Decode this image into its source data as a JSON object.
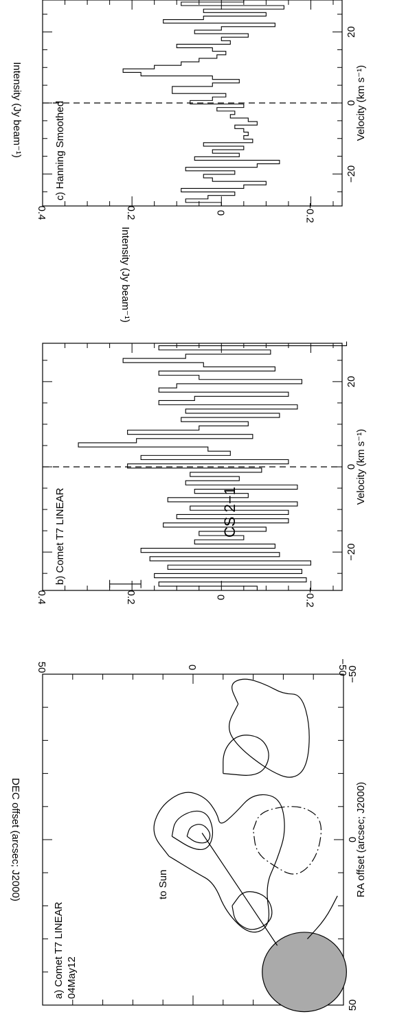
{
  "figure_title": "CS 2−1",
  "chart_data": [
    {
      "type": "contour",
      "panel_label": "a) Comet T7 LINEAR",
      "date_label": "04May12",
      "annotation": "to Sun",
      "xlabel": "RA offset (arcsec; J2000)",
      "ylabel": "DEC offset (arcsec; J2000)",
      "xlim": [
        50,
        -50
      ],
      "ylim": [
        -50,
        50
      ],
      "xticks": [
        50,
        0,
        -50
      ],
      "yticks": [
        -50,
        0,
        50
      ],
      "tick_labels_x": [
        "50",
        "0",
        "−50"
      ],
      "tick_labels_y": [
        "−50",
        "0",
        "50"
      ],
      "sun_arrow": [
        [
          32,
          -28
        ],
        [
          -2,
          -3
        ]
      ],
      "beam": {
        "x": 40,
        "y": -37,
        "rx": 12,
        "ry": 14
      },
      "contours": [
        {
          "style": "solid",
          "points": [
            [
              5,
              8
            ],
            [
              -2,
              14
            ],
            [
              -10,
              11
            ],
            [
              -15,
              3
            ],
            [
              -13,
              -4
            ],
            [
              -8,
              -8
            ],
            [
              -4,
              -9
            ],
            [
              -8,
              -14
            ],
            [
              -14,
              -20
            ],
            [
              -13,
              -29
            ],
            [
              -3,
              -31
            ],
            [
              6,
              -28
            ],
            [
              14,
              -24
            ],
            [
              26,
              -26
            ],
            [
              29,
              -19
            ],
            [
              22,
              -11
            ],
            [
              13,
              -7
            ],
            [
              10,
              -1
            ],
            [
              5,
              8
            ]
          ]
        },
        {
          "style": "solid",
          "points": [
            [
              -1,
              7
            ],
            [
              -6,
              6
            ],
            [
              -9,
              0
            ],
            [
              -8,
              -5
            ],
            [
              -2,
              -7
            ],
            [
              3,
              -5
            ],
            [
              3,
              0
            ],
            [
              -1,
              7
            ]
          ]
        },
        {
          "style": "solid",
          "points": [
            [
              -1,
              2
            ],
            [
              -4,
              1
            ],
            [
              -5,
              -3
            ],
            [
              -2,
              -6
            ],
            [
              1,
              -5
            ],
            [
              1,
              -1
            ],
            [
              -1,
              2
            ]
          ]
        },
        {
          "style": "solid",
          "points": [
            [
              20,
              -13
            ],
            [
              15,
              -17
            ],
            [
              17,
              -25
            ],
            [
              24,
              -27
            ],
            [
              28,
              -20
            ],
            [
              25,
              -14
            ],
            [
              20,
              -13
            ]
          ]
        },
        {
          "style": "solid",
          "points": [
            [
              -20,
              -10
            ],
            [
              -27,
              -10
            ],
            [
              -32,
              -15
            ],
            [
              -31,
              -23
            ],
            [
              -25,
              -26
            ],
            [
              -19,
              -22
            ],
            [
              -20,
              -10
            ]
          ]
        },
        {
          "style": "solid",
          "points": [
            [
              -41,
              -15
            ],
            [
              -47,
              -12
            ],
            [
              -49,
              -17
            ],
            [
              -47,
              -24
            ],
            [
              -44,
              -30
            ],
            [
              -44,
              -36
            ],
            [
              -34,
              -39
            ],
            [
              -22,
              -38
            ],
            [
              -18,
              -33
            ],
            [
              -21,
              -25
            ],
            [
              -28,
              -15
            ],
            [
              -34,
              -11
            ],
            [
              -41,
              -15
            ]
          ]
        },
        {
          "style": "dashdot",
          "points": [
            [
              -3,
              -20
            ],
            [
              -8,
              -22
            ],
            [
              -10,
              -29
            ],
            [
              -10,
              -37
            ],
            [
              -6,
              -43
            ],
            [
              3,
              -42
            ],
            [
              9,
              -38
            ],
            [
              11,
              -33
            ],
            [
              8,
              -27
            ],
            [
              4,
              -21
            ],
            [
              -3,
              -20
            ]
          ]
        },
        {
          "style": "solid",
          "points": [
            [
              30,
              -38
            ],
            [
              24,
              -44
            ],
            [
              17,
              -48
            ]
          ]
        }
      ]
    },
    {
      "type": "step",
      "panel_label": "b) Comet T7 LINEAR",
      "xlabel": "Velocity (km s⁻¹)",
      "ylabel": "Intensity (Jy beam⁻¹)",
      "xlim": [
        -29,
        29
      ],
      "ylim": [
        -0.27,
        0.4
      ],
      "xticks": [
        -20,
        0,
        20
      ],
      "yticks": [
        -0.2,
        0,
        0.2,
        0.4
      ],
      "tick_labels_x": [
        "−20",
        "0",
        "20"
      ],
      "tick_labels_y": [
        "−0.2",
        "0",
        "0.2",
        "0.4"
      ],
      "vline": 0,
      "error_bar": {
        "x": -27.5,
        "y_low": 0.18,
        "y_high": 0.25
      },
      "x_start": -29,
      "bin_width": 0.99,
      "values": [
        -0.08,
        0.14,
        -0.19,
        0.15,
        -0.18,
        0.12,
        -0.2,
        0.16,
        -0.13,
        0.18,
        -0.12,
        0.06,
        -0.05,
        0.05,
        -0.1,
        0.13,
        -0.15,
        0.1,
        -0.15,
        0.07,
        -0.17,
        0.12,
        -0.06,
        0.06,
        -0.17,
        0.08,
        -0.04,
        0.07,
        -0.09,
        0.21,
        -0.15,
        0.18,
        -0.02,
        0.03,
        0.32,
        0.19,
        -0.07,
        0.21,
        0.05,
        -0.06,
        0.09,
        -0.13,
        0.08,
        -0.17,
        0.14,
        0.06,
        -0.15,
        0.14,
        0.1,
        -0.18,
        0.05,
        0.14,
        -0.12,
        0.04,
        0.22,
        0.08,
        -0.11,
        0.14,
        -0.28
      ]
    },
    {
      "type": "step",
      "panel_label": "c) Hanning Smoothed",
      "xlabel": "Velocity (km s⁻¹)",
      "ylabel": "Intensity (Jy beam⁻¹)",
      "xlim": [
        -29,
        29
      ],
      "ylim": [
        -0.27,
        0.4
      ],
      "xticks": [
        -20,
        0,
        20
      ],
      "yticks": [
        -0.2,
        0,
        0.2,
        0.4
      ],
      "tick_labels_x": [
        "−20",
        "0",
        "20"
      ],
      "tick_labels_y": [
        "−0.2",
        "0",
        "0.2",
        "0.4"
      ],
      "vline": 0,
      "x_start": -29,
      "bin_width": 0.99,
      "values": [
        0.0,
        0.08,
        0.03,
        -0.03,
        0.09,
        -0.05,
        -0.1,
        0.02,
        0.04,
        -0.03,
        0.08,
        -0.08,
        -0.13,
        0.06,
        -0.04,
        0.02,
        -0.05,
        0.04,
        -0.07,
        -0.05,
        -0.06,
        -0.05,
        -0.03,
        -0.08,
        -0.06,
        -0.02,
        -0.03,
        0.01,
        -0.05,
        0.07,
        0.02,
        -0.01,
        0.11,
        0.11,
        0.02,
        -0.04,
        0.02,
        0.18,
        0.22,
        0.15,
        0.09,
        0.05,
        0.01,
        -0.01,
        0.02,
        0.1,
        -0.02,
        0.0,
        -0.06,
        0.06,
        0.0,
        -0.12,
        0.13,
        0.04,
        -0.1,
        0.04,
        -0.14,
        0.09,
        -0.05,
        0.12,
        0.02,
        -0.17,
        0.07,
        -0.05,
        0.06,
        0.16
      ]
    }
  ]
}
